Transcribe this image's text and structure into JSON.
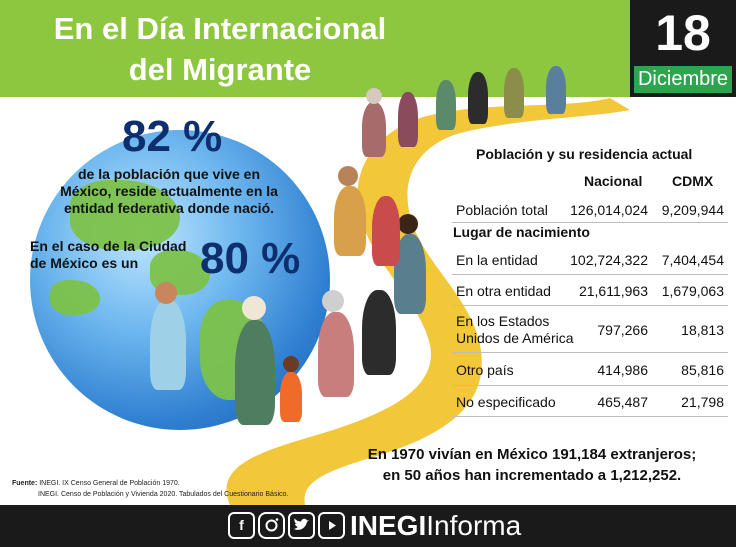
{
  "header": {
    "title_line1": "En el Día Internacional",
    "title_line2": "del Migrante",
    "date_day": "18",
    "date_month": "Diciembre"
  },
  "stats": {
    "pct_country": "82 %",
    "text_country_line1": "de la población que vive en",
    "text_country_line2": "México, reside actualmente en la",
    "text_country_line3": "entidad federativa donde nació.",
    "text_cdmx_line1": "En el caso de la Ciudad",
    "text_cdmx_line2": "de México es un",
    "pct_cdmx": "80 %"
  },
  "table": {
    "title": "Población y su residencia actual",
    "col_nacional": "Nacional",
    "col_cdmx": "CDMX",
    "total_row": {
      "label": "Población total",
      "nacional": "126,014,024",
      "cdmx": "9,209,944"
    },
    "section_label": "Lugar de nacimiento",
    "rows": [
      {
        "label": "En la entidad",
        "nacional": "102,724,322",
        "cdmx": "7,404,454"
      },
      {
        "label": "En otra entidad",
        "nacional": "21,611,963",
        "cdmx": "1,679,063"
      },
      {
        "label_line1": "En los Estados",
        "label_line2": "Unidos de América",
        "nacional": "797,266",
        "cdmx": "18,813"
      },
      {
        "label": "Otro país",
        "nacional": "414,986",
        "cdmx": "85,816"
      },
      {
        "label": "No especificado",
        "nacional": "465,487",
        "cdmx": "21,798"
      }
    ]
  },
  "footnote": {
    "line1": "En 1970 vivían en México 191,184 extranjeros;",
    "line2": "en 50 años han incrementado a 1,212,252."
  },
  "source": {
    "label": "Fuente:",
    "line1": "INEGI. IX Censo General de Población 1970.",
    "line2": "INEGI. Censo de Población y Vivienda 2020. Tabulados del Cuestionario Básico."
  },
  "footer": {
    "social_icons": [
      "facebook-icon",
      "instagram-icon",
      "twitter-icon",
      "youtube-icon"
    ],
    "brand_bold": "INEGI",
    "brand_light": "Informa"
  },
  "colors": {
    "header_green": "#8dc63f",
    "date_green": "#2ea44f",
    "dark": "#1a1a1a",
    "path_yellow": "#f2c73a",
    "pct_blue": "#0d2f6e"
  }
}
